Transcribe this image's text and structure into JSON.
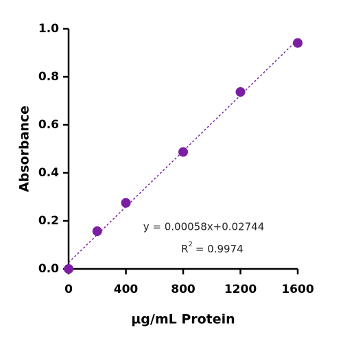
{
  "chart_data": {
    "type": "scatter",
    "x_label": "µg/mL Protein",
    "y_label": "Absorbance",
    "series": [
      {
        "color": "#7b1fa2",
        "x": [
          0,
          200,
          400,
          800,
          1200,
          1600
        ],
        "values": [
          0.0,
          0.157,
          0.275,
          0.487,
          0.737,
          0.941
        ]
      }
    ],
    "trendline": {
      "style": "dashed",
      "color": "#7b1fa2"
    },
    "equation": "y = 0.00058x+0.02744",
    "r2_symbol": "R",
    "r2_exponent": "2",
    "r2_value": "= 0.9974",
    "xlim": [
      0,
      1600
    ],
    "xticks": [
      0,
      400,
      800,
      1200,
      1600
    ],
    "ylim": [
      0,
      1
    ],
    "yticks": [
      {
        "value": 0,
        "label": "0.0"
      },
      0.2,
      0.4,
      0.6,
      0.8,
      {
        "value": 1,
        "label": "1.0"
      }
    ],
    "grid": false
  }
}
